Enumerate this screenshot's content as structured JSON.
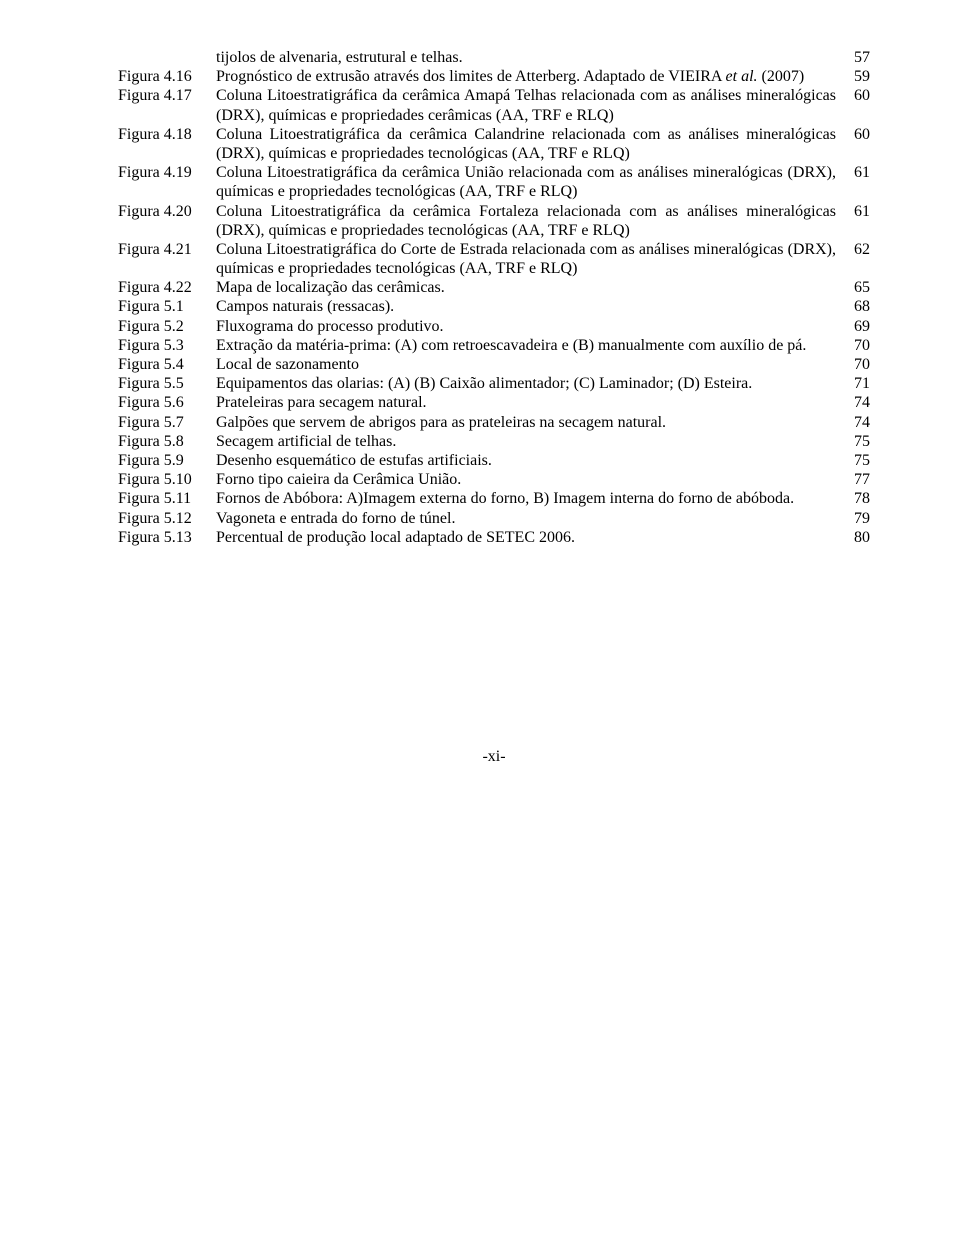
{
  "entries": [
    {
      "label": "",
      "desc": "tijolos de alvenaria, estrutural e telhas.",
      "page": "57"
    },
    {
      "label": "Figura 4.16",
      "desc": "Prognóstico de extrusão através dos limites de Atterberg. Adaptado de VIEIRA <i>et al.</i> (2007)",
      "page": "59"
    },
    {
      "label": "Figura 4.17",
      "desc": "Coluna Litoestratigráfica da cerâmica Amapá Telhas relacionada com as análises mineralógicas (DRX), químicas e propriedades cerâmicas (AA, TRF e RLQ)",
      "page": "60"
    },
    {
      "label": "Figura 4.18",
      "desc": "Coluna Litoestratigráfica da cerâmica Calandrine relacionada com as análises mineralógicas (DRX), químicas e propriedades tecnológicas (AA, TRF e RLQ)",
      "page": "60"
    },
    {
      "label": "Figura 4.19",
      "desc": "Coluna Litoestratigráfica da cerâmica União relacionada com as análises mineralógicas (DRX), químicas e propriedades tecnológicas (AA, TRF e RLQ)",
      "page": "61"
    },
    {
      "label": "Figura 4.20",
      "desc": "Coluna Litoestratigráfica da cerâmica Fortaleza relacionada com as análises mineralógicas (DRX), químicas e propriedades tecnológicas (AA, TRF e RLQ)",
      "page": "61"
    },
    {
      "label": "Figura 4.21",
      "desc": "Coluna Litoestratigráfica do Corte de Estrada relacionada com as análises mineralógicas (DRX), químicas e propriedades tecnológicas (AA, TRF e RLQ)",
      "page": "62"
    },
    {
      "label": "Figura 4.22",
      "desc": "Mapa de localização das cerâmicas.",
      "page": "65"
    },
    {
      "label": "Figura 5.1",
      "desc": "Campos naturais (ressacas).",
      "page": "68"
    },
    {
      "label": "Figura 5.2",
      "desc": "Fluxograma do processo produtivo.",
      "page": "69"
    },
    {
      "label": "Figura 5.3",
      "desc": "Extração da matéria-prima: (A) com retroescavadeira e (B) manualmente com auxílio de pá.",
      "page": "70"
    },
    {
      "label": "Figura 5.4",
      "desc": "Local de sazonamento",
      "page": "70"
    },
    {
      "label": "Figura 5.5",
      "desc": "Equipamentos das olarias: (A) (B) Caixão alimentador; (C) Laminador; (D) Esteira.",
      "page": "71"
    },
    {
      "label": "Figura 5.6",
      "desc": "Prateleiras para secagem natural.",
      "page": "74"
    },
    {
      "label": "Figura 5.7",
      "desc": "Galpões que servem de abrigos para as prateleiras na secagem natural.",
      "page": "74"
    },
    {
      "label": "Figura 5.8",
      "desc": "Secagem artificial de telhas.",
      "page": "75"
    },
    {
      "label": "Figura 5.9",
      "desc": "Desenho esquemático de estufas artificiais.",
      "page": "75"
    },
    {
      "label": "Figura 5.10",
      "desc": "Forno tipo caieira da Cerâmica União.",
      "page": "77"
    },
    {
      "label": "Figura 5.11",
      "desc": "Fornos de Abóbora: A)Imagem externa do forno, B) Imagem interna do forno de abóboda.",
      "page": "78"
    },
    {
      "label": "Figura 5.12",
      "desc": "Vagoneta e entrada do forno de túnel.",
      "page": "79"
    },
    {
      "label": "Figura 5.13",
      "desc": "Percentual de produção local adaptado de SETEC 2006.",
      "page": "80"
    }
  ],
  "footer": "-xi-"
}
